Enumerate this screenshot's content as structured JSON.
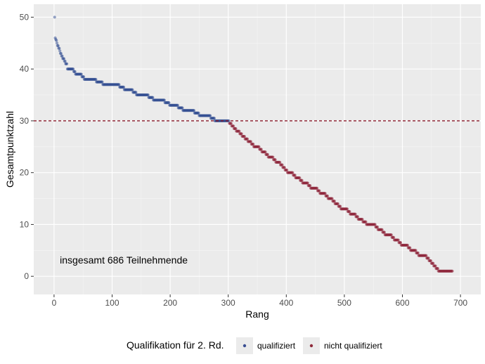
{
  "chart_data": {
    "type": "scatter",
    "title": "",
    "xlabel": "Rang",
    "ylabel": "Gesamtpunktzahl",
    "xlim": [
      -35,
      735
    ],
    "ylim": [
      -3.5,
      52.5
    ],
    "x_ticks": [
      0,
      100,
      200,
      300,
      400,
      500,
      600,
      700
    ],
    "y_ticks": [
      0,
      10,
      20,
      30,
      40,
      50
    ],
    "grid": true,
    "threshold": {
      "y": 30,
      "style": "dashed",
      "color": "#8b1a2b"
    },
    "annotation": {
      "text": "insgesamt 686 Teilnehmende",
      "x": 10,
      "y": 2.5
    },
    "legend": {
      "title": "Qualifikation für 2. Rd.",
      "position": "bottom",
      "entries": [
        {
          "label": "qualifiziert",
          "color": "#3b4f92"
        },
        {
          "label": "nicht qualifiziert",
          "color": "#8f2a3b"
        }
      ]
    },
    "series": [
      {
        "name": "qualifiziert",
        "color": "#2e4a8f",
        "steps": [
          [
            1,
            1,
            50
          ],
          [
            2,
            2,
            46
          ],
          [
            3,
            3,
            45.7
          ],
          [
            4,
            4,
            45.5
          ],
          [
            5,
            5,
            45
          ],
          [
            6,
            7,
            44.5
          ],
          [
            8,
            9,
            44
          ],
          [
            10,
            10,
            43.5
          ],
          [
            11,
            12,
            43
          ],
          [
            13,
            14,
            42.5
          ],
          [
            15,
            17,
            42
          ],
          [
            18,
            19,
            41.5
          ],
          [
            20,
            22,
            41
          ],
          [
            23,
            33,
            40
          ],
          [
            34,
            36,
            39.5
          ],
          [
            37,
            47,
            39
          ],
          [
            48,
            51,
            38.5
          ],
          [
            52,
            72,
            38
          ],
          [
            73,
            83,
            37.5
          ],
          [
            84,
            112,
            37
          ],
          [
            113,
            120,
            36.5
          ],
          [
            121,
            135,
            36
          ],
          [
            136,
            141,
            35.5
          ],
          [
            142,
            162,
            35
          ],
          [
            163,
            170,
            34.5
          ],
          [
            171,
            190,
            34
          ],
          [
            191,
            198,
            33.5
          ],
          [
            199,
            213,
            33
          ],
          [
            214,
            221,
            32.5
          ],
          [
            222,
            241,
            32
          ],
          [
            242,
            249,
            31.5
          ],
          [
            250,
            269,
            31
          ],
          [
            270,
            276,
            30.5
          ],
          [
            277,
            301,
            30
          ]
        ]
      },
      {
        "name": "nicht qualifiziert",
        "color": "#8b2035",
        "steps": [
          [
            302,
            305,
            29.5
          ],
          [
            306,
            309,
            29
          ],
          [
            310,
            313,
            28.5
          ],
          [
            314,
            319,
            28
          ],
          [
            320,
            323,
            27.5
          ],
          [
            324,
            328,
            27
          ],
          [
            329,
            333,
            26.5
          ],
          [
            334,
            339,
            26
          ],
          [
            340,
            343,
            25.5
          ],
          [
            344,
            353,
            25
          ],
          [
            354,
            357,
            24.5
          ],
          [
            358,
            364,
            24
          ],
          [
            365,
            368,
            23.5
          ],
          [
            369,
            377,
            23
          ],
          [
            378,
            381,
            22.5
          ],
          [
            382,
            389,
            22
          ],
          [
            390,
            393,
            21.5
          ],
          [
            394,
            397,
            21
          ],
          [
            398,
            401,
            20.5
          ],
          [
            402,
            411,
            20
          ],
          [
            412,
            415,
            19.5
          ],
          [
            416,
            423,
            19
          ],
          [
            424,
            427,
            18.5
          ],
          [
            428,
            437,
            18
          ],
          [
            438,
            441,
            17.5
          ],
          [
            442,
            453,
            17
          ],
          [
            454,
            457,
            16.5
          ],
          [
            458,
            467,
            16
          ],
          [
            468,
            471,
            15.5
          ],
          [
            472,
            479,
            15
          ],
          [
            480,
            483,
            14.5
          ],
          [
            484,
            489,
            14
          ],
          [
            490,
            493,
            13.5
          ],
          [
            494,
            505,
            13
          ],
          [
            506,
            509,
            12.5
          ],
          [
            510,
            519,
            12
          ],
          [
            520,
            523,
            11.5
          ],
          [
            524,
            531,
            11
          ],
          [
            532,
            537,
            10.5
          ],
          [
            538,
            553,
            10
          ],
          [
            554,
            557,
            9.5
          ],
          [
            558,
            565,
            9
          ],
          [
            566,
            569,
            8.5
          ],
          [
            570,
            581,
            8
          ],
          [
            582,
            585,
            7.5
          ],
          [
            586,
            593,
            7
          ],
          [
            594,
            597,
            6.5
          ],
          [
            598,
            609,
            6
          ],
          [
            610,
            613,
            5.5
          ],
          [
            614,
            623,
            5
          ],
          [
            624,
            627,
            4.5
          ],
          [
            628,
            641,
            4
          ],
          [
            642,
            645,
            3.5
          ],
          [
            646,
            649,
            3
          ],
          [
            650,
            653,
            2.5
          ],
          [
            654,
            657,
            2
          ],
          [
            658,
            661,
            1.5
          ],
          [
            662,
            686,
            1
          ]
        ]
      }
    ]
  }
}
